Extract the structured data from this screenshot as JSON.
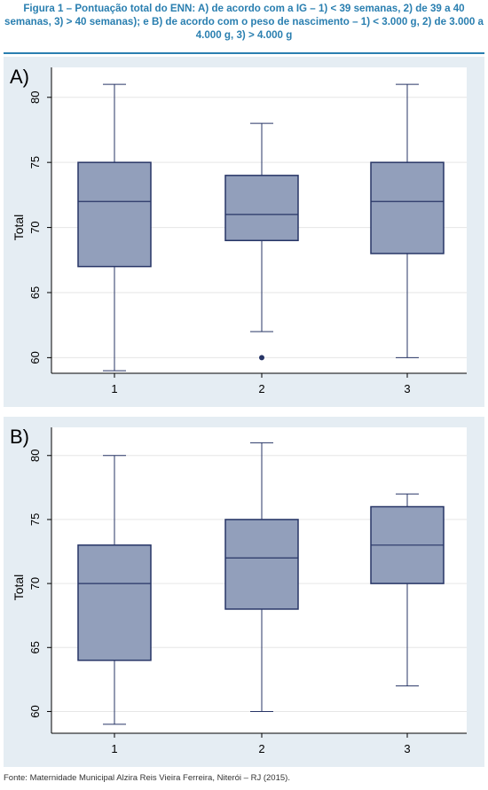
{
  "caption": "Figura 1 – Pontuação total do ENN: A) de acordo com a IG – 1) < 39 semanas, 2) de 39 a 40 semanas, 3) > 40 semanas); e B) de acordo com o peso de nascimento – 1) < 3.000 g, 2) de 3.000 a 4.000 g, 3) > 4.000 g",
  "source": "Fonte: Maternidade Municipal Alzira Reis Vieira Ferreira, Niterói – RJ (2015).",
  "colors": {
    "box_fill": "#929fbb",
    "box_stroke": "#273566",
    "whisker": "#273566",
    "panel_bg": "#e5edf3",
    "plot_bg": "#ffffff",
    "grid": "#e6e6e6",
    "caption": "#2a7fb0"
  },
  "chart_data": [
    {
      "type": "box",
      "panel_label": "A)",
      "ylabel": "Total",
      "ylim": [
        58.8,
        82.3
      ],
      "yticks": [
        60,
        65,
        70,
        75,
        80
      ],
      "grid": true,
      "categories": [
        "1",
        "2",
        "3"
      ],
      "boxes": [
        {
          "category": "1",
          "min": 59,
          "q1": 67,
          "median": 72,
          "q3": 75,
          "max": 81,
          "outliers": []
        },
        {
          "category": "2",
          "min": 62,
          "q1": 69,
          "median": 71,
          "q3": 74,
          "max": 78,
          "outliers": [
            60
          ]
        },
        {
          "category": "3",
          "min": 60,
          "q1": 68,
          "median": 72,
          "q3": 75,
          "max": 81,
          "outliers": []
        }
      ]
    },
    {
      "type": "box",
      "panel_label": "B)",
      "ylabel": "Total",
      "ylim": [
        58.3,
        82.2
      ],
      "yticks": [
        60,
        65,
        70,
        75,
        80
      ],
      "grid": true,
      "categories": [
        "1",
        "2",
        "3"
      ],
      "boxes": [
        {
          "category": "1",
          "min": 59,
          "q1": 64,
          "median": 70,
          "q3": 73,
          "max": 80,
          "outliers": []
        },
        {
          "category": "2",
          "min": 60,
          "q1": 68,
          "median": 72,
          "q3": 75,
          "max": 81,
          "outliers": []
        },
        {
          "category": "3",
          "min": 62,
          "q1": 70,
          "median": 73,
          "q3": 76,
          "max": 77,
          "outliers": []
        }
      ]
    }
  ]
}
